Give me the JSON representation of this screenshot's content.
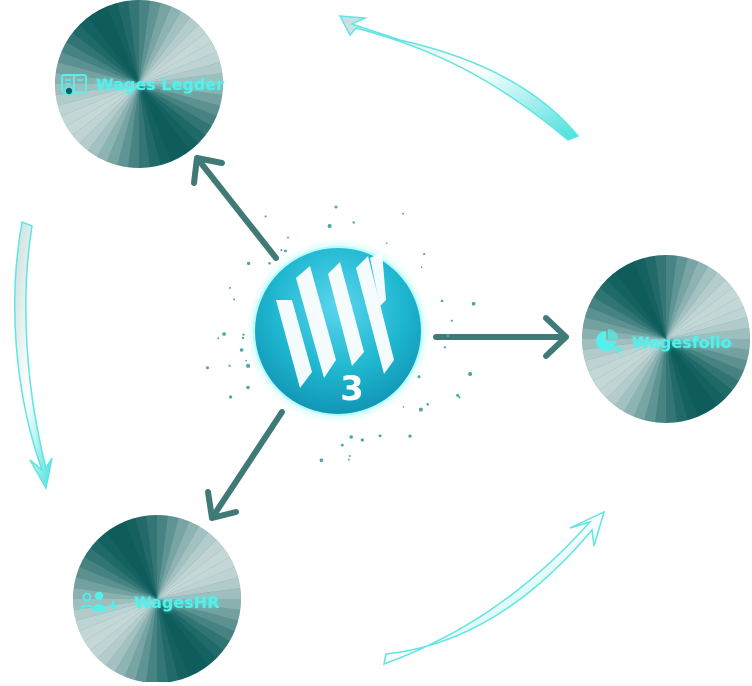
{
  "colors": {
    "accent": "#54f0ec",
    "node_dark": "#0e5d5c",
    "node_light": "#e6eeee",
    "arrow": "#3f7a76",
    "hub": "#14c3d3"
  },
  "hub": {
    "logo_text": "W",
    "logo_number": "3",
    "icon": "wages-w3-logo"
  },
  "nodes": {
    "ledger": {
      "label": "Wages Legder",
      "icon": "ledger-icon"
    },
    "folio": {
      "label": "Wagesfolio",
      "icon": "pie-chart-plus-icon"
    },
    "hr": {
      "label": "WagesHR",
      "icon": "people-add-icon"
    }
  }
}
